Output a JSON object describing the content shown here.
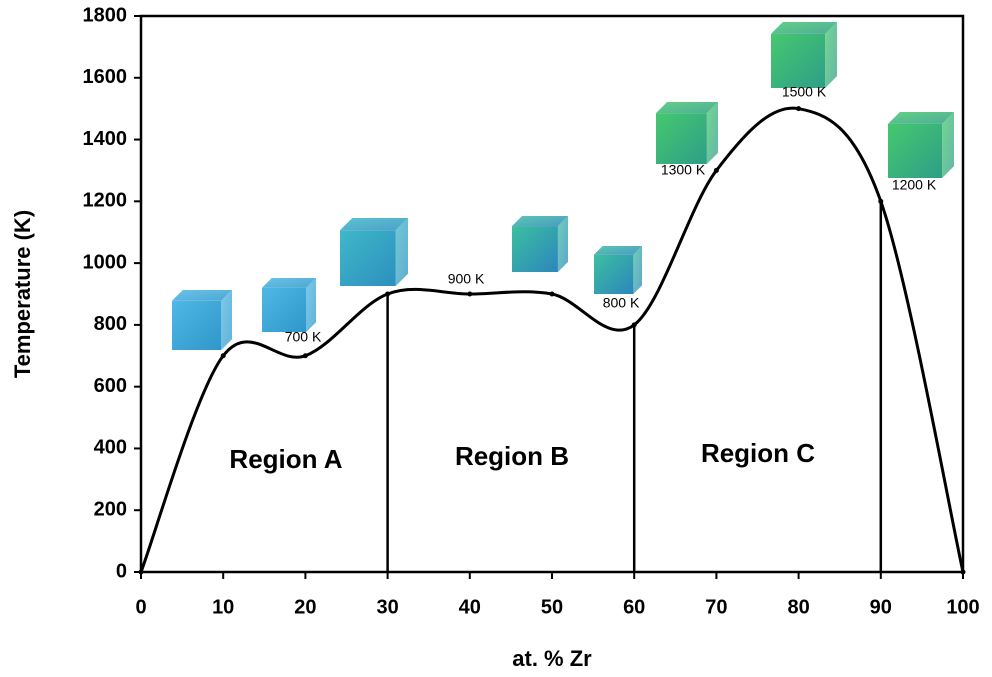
{
  "chart_data": {
    "type": "line",
    "x_label": "at. % Zr",
    "y_label": "Temperature (K)",
    "x": [
      0,
      10,
      20,
      30,
      40,
      50,
      60,
      70,
      80,
      90,
      100
    ],
    "series": [
      {
        "color": "#000000",
        "values": [
          0,
          700,
          700,
          900,
          900,
          900,
          800,
          1300,
          1500,
          1200,
          0
        ]
      }
    ],
    "xlim": [
      0,
      100
    ],
    "xticks": [
      0,
      10,
      20,
      30,
      40,
      50,
      60,
      70,
      80,
      90,
      100
    ],
    "ylim": [
      0,
      1800
    ],
    "yticks": [
      0,
      200,
      400,
      600,
      800,
      1000,
      1200,
      1400,
      1600,
      1800
    ],
    "grid": false,
    "dividers": [
      30,
      60,
      90
    ],
    "regions": [
      "Region A",
      "Region B",
      "Region C"
    ],
    "annotations": [
      "700 K",
      "900 K",
      "800 K",
      "1300 K",
      "1500 K",
      "1200 K"
    ]
  }
}
